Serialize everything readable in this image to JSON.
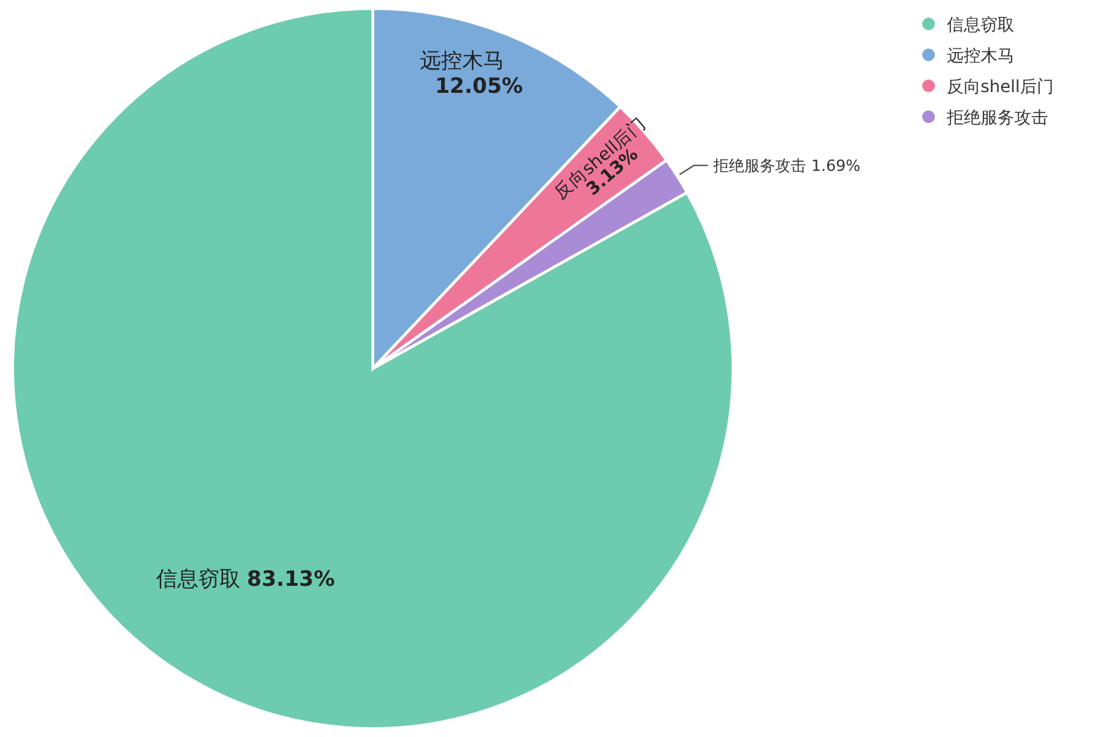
{
  "chart_data": {
    "type": "pie",
    "categories": [
      "信息窃取",
      "远控木马",
      "反向shell后门",
      "拒绝服务攻击"
    ],
    "values": [
      83.13,
      12.05,
      3.13,
      1.69
    ],
    "value_labels": [
      "83.13%",
      "12.05%",
      "3.13%",
      "1.69%"
    ],
    "colors": [
      "#6dcbb0",
      "#79aada",
      "#ee7799",
      "#a98bd6"
    ],
    "legend": "top right"
  }
}
